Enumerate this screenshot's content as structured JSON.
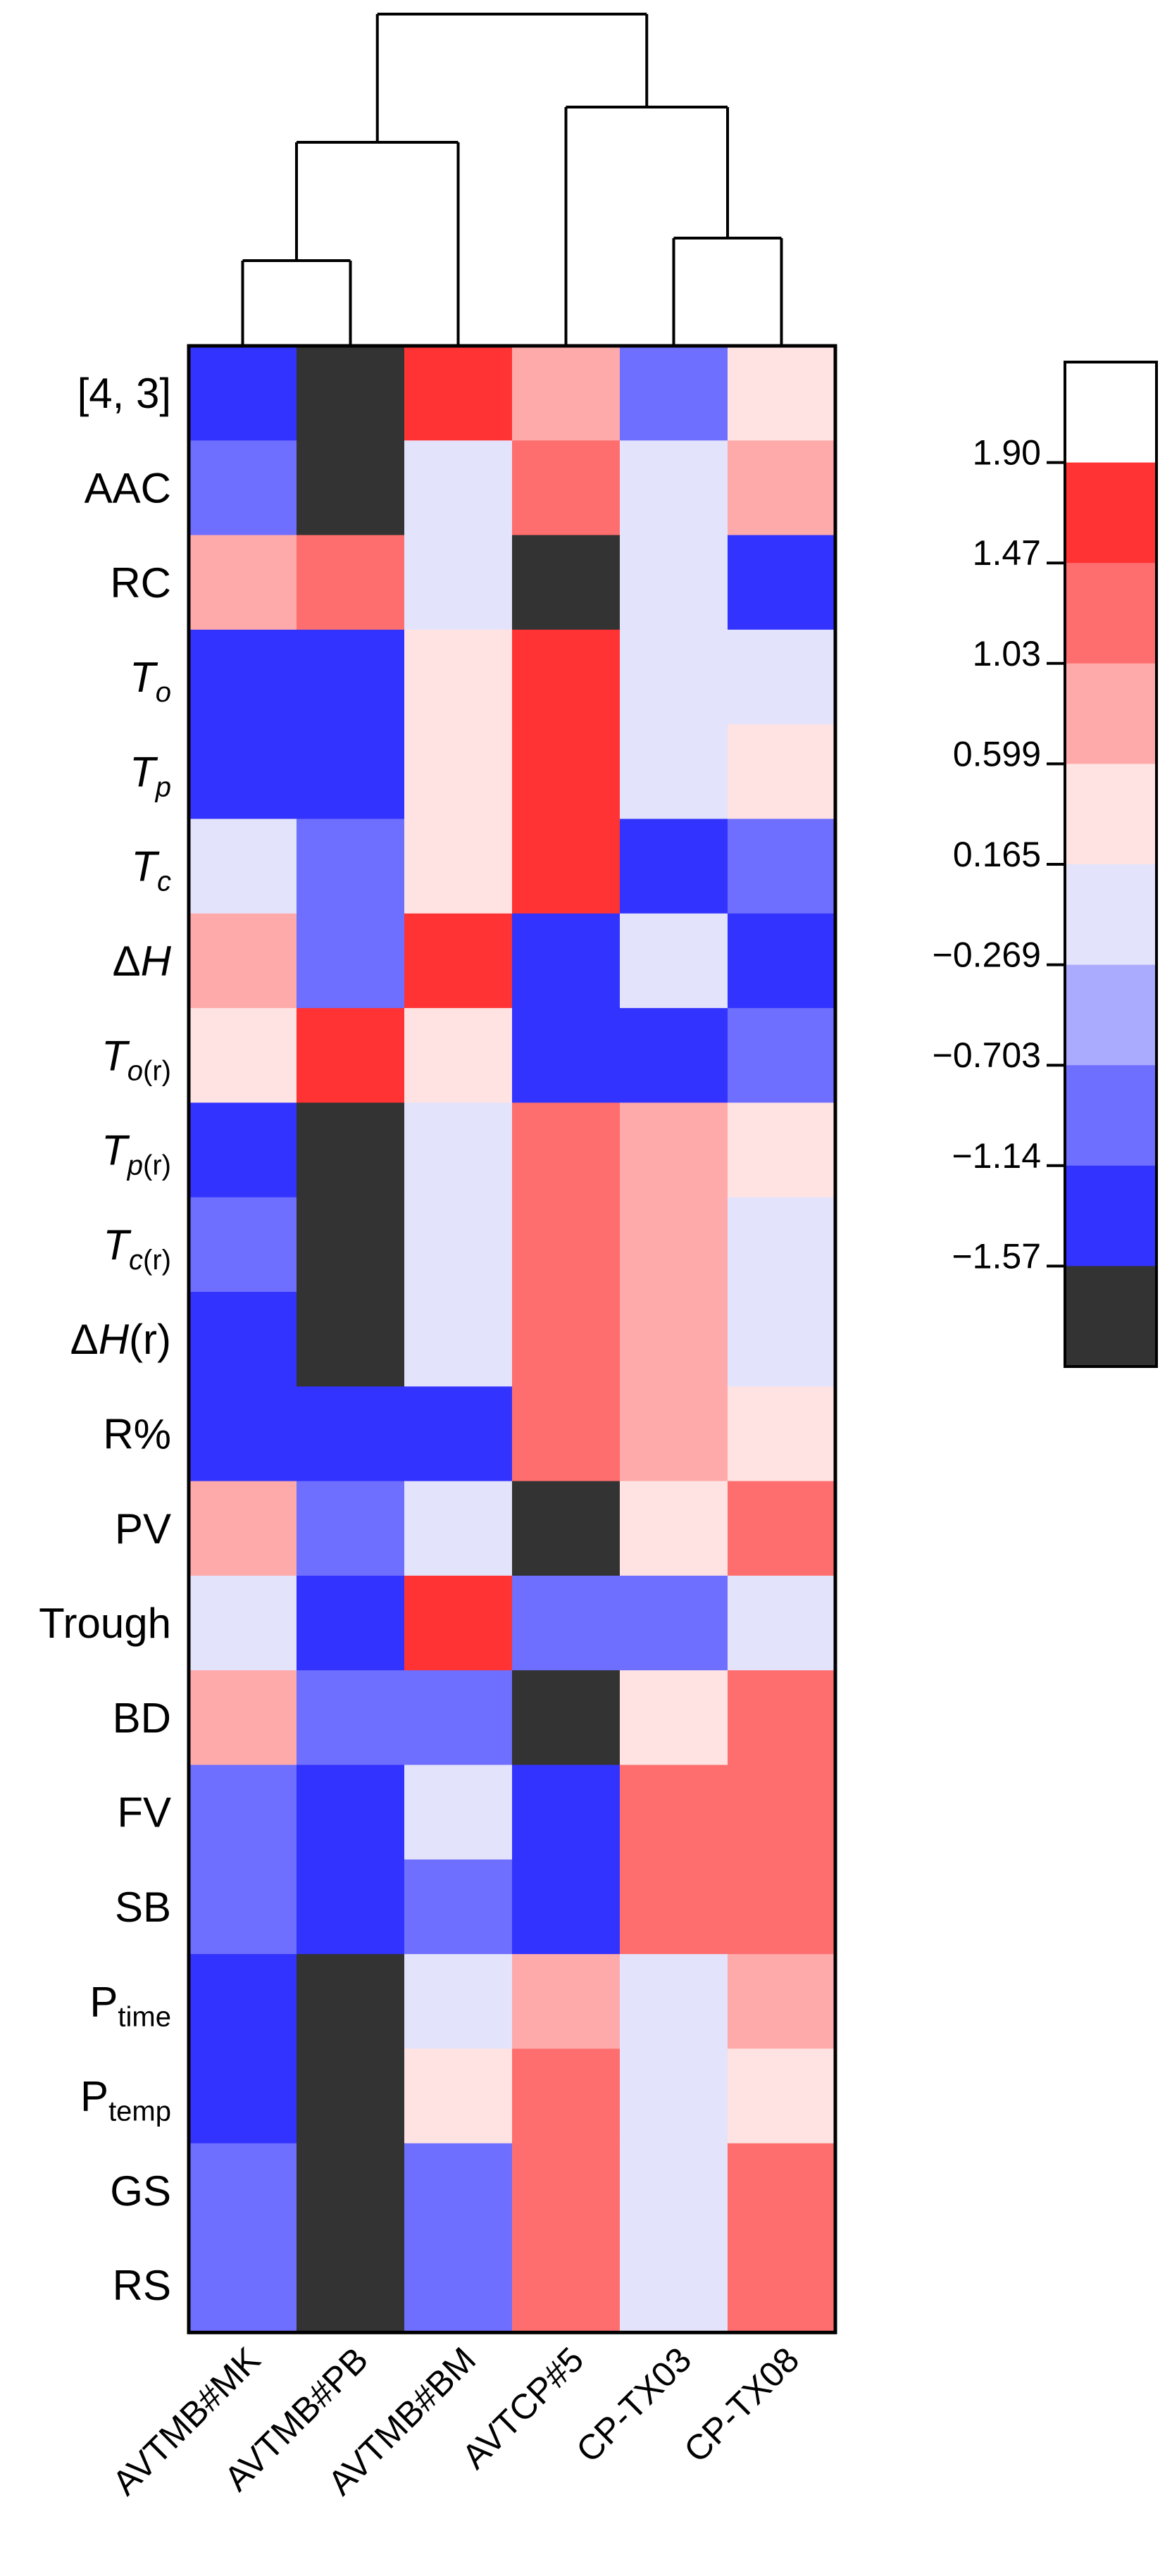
{
  "chart_data": {
    "type": "heatmap",
    "title": "",
    "xlabel": "",
    "ylabel": "",
    "columns": [
      "AVTMB#MK",
      "AVTMB#PB",
      "AVTMB#BM",
      "AVTCP#5",
      "CP-TX03",
      "CP-TX08"
    ],
    "rows": [
      {
        "label": "[4, 3]",
        "parts": [
          {
            "t": "[4, 3]"
          }
        ]
      },
      {
        "label": "AAC",
        "parts": [
          {
            "t": "AAC"
          }
        ]
      },
      {
        "label": "RC",
        "parts": [
          {
            "t": "RC"
          }
        ]
      },
      {
        "label": "To",
        "parts": [
          {
            "t": "T",
            "i": true
          },
          {
            "t": "o",
            "i": true,
            "sub": true
          }
        ]
      },
      {
        "label": "Tp",
        "parts": [
          {
            "t": "T",
            "i": true
          },
          {
            "t": "p",
            "i": true,
            "sub": true
          }
        ]
      },
      {
        "label": "Tc",
        "parts": [
          {
            "t": "T",
            "i": true
          },
          {
            "t": "c",
            "i": true,
            "sub": true
          }
        ]
      },
      {
        "label": "ΔH",
        "parts": [
          {
            "t": "Δ"
          },
          {
            "t": "H",
            "i": true
          }
        ]
      },
      {
        "label": "To(r)",
        "parts": [
          {
            "t": "T",
            "i": true
          },
          {
            "t": "o",
            "i": true,
            "sub": true
          },
          {
            "t": "(r)",
            "sub": true
          }
        ]
      },
      {
        "label": "Tp(r)",
        "parts": [
          {
            "t": "T",
            "i": true
          },
          {
            "t": "p",
            "i": true,
            "sub": true
          },
          {
            "t": "(r)",
            "sub": true
          }
        ]
      },
      {
        "label": "Tc(r)",
        "parts": [
          {
            "t": "T",
            "i": true
          },
          {
            "t": "c",
            "i": true,
            "sub": true
          },
          {
            "t": "(r)",
            "sub": true
          }
        ]
      },
      {
        "label": "ΔH(r)",
        "parts": [
          {
            "t": "Δ"
          },
          {
            "t": "H",
            "i": true
          },
          {
            "t": "(r)"
          }
        ]
      },
      {
        "label": "R%",
        "parts": [
          {
            "t": "R%"
          }
        ]
      },
      {
        "label": "PV",
        "parts": [
          {
            "t": "PV"
          }
        ]
      },
      {
        "label": "Trough",
        "parts": [
          {
            "t": "Trough"
          }
        ]
      },
      {
        "label": "BD",
        "parts": [
          {
            "t": "BD"
          }
        ]
      },
      {
        "label": "FV",
        "parts": [
          {
            "t": "FV"
          }
        ]
      },
      {
        "label": "SB",
        "parts": [
          {
            "t": "SB"
          }
        ]
      },
      {
        "label": "Ptime",
        "parts": [
          {
            "t": "P"
          },
          {
            "t": "time",
            "sub": true
          }
        ]
      },
      {
        "label": "Ptemp",
        "parts": [
          {
            "t": "P"
          },
          {
            "t": "temp",
            "sub": true
          }
        ]
      },
      {
        "label": "GS",
        "parts": [
          {
            "t": "GS"
          }
        ]
      },
      {
        "label": "RS",
        "parts": [
          {
            "t": "RS"
          }
        ]
      }
    ],
    "values": [
      [
        -1.14,
        -1.57,
        1.9,
        1.03,
        -0.703,
        0.599
      ],
      [
        -0.703,
        -1.57,
        0.165,
        1.47,
        0.165,
        1.03
      ],
      [
        1.03,
        1.47,
        0.165,
        -1.57,
        0.165,
        -1.14
      ],
      [
        -1.14,
        -1.14,
        0.599,
        1.9,
        0.165,
        0.165
      ],
      [
        -1.14,
        -1.14,
        0.599,
        1.9,
        0.165,
        0.599
      ],
      [
        0.165,
        -0.703,
        0.599,
        1.9,
        -1.14,
        -0.703
      ],
      [
        1.03,
        -0.703,
        1.9,
        -1.14,
        0.165,
        -1.14
      ],
      [
        0.599,
        1.9,
        0.599,
        -1.14,
        -1.14,
        -0.703
      ],
      [
        -1.14,
        -1.57,
        0.165,
        1.47,
        1.03,
        0.599
      ],
      [
        -0.703,
        -1.57,
        0.165,
        1.47,
        1.03,
        0.165
      ],
      [
        -1.14,
        -1.57,
        0.165,
        1.47,
        1.03,
        0.165
      ],
      [
        -1.14,
        -1.14,
        -1.14,
        1.47,
        1.03,
        0.599
      ],
      [
        1.03,
        -0.703,
        0.165,
        -1.57,
        0.599,
        1.47
      ],
      [
        0.165,
        -1.14,
        1.9,
        -0.703,
        -0.703,
        0.165
      ],
      [
        1.03,
        -0.703,
        -0.703,
        -1.57,
        0.599,
        1.47
      ],
      [
        -0.703,
        -1.14,
        0.165,
        -1.14,
        1.47,
        1.47
      ],
      [
        -0.703,
        -1.14,
        -0.703,
        -1.14,
        1.47,
        1.47
      ],
      [
        -1.14,
        -1.57,
        0.165,
        1.03,
        0.165,
        1.03
      ],
      [
        -1.14,
        -1.57,
        0.599,
        1.47,
        0.165,
        0.599
      ],
      [
        -0.703,
        -1.57,
        -0.703,
        1.47,
        0.165,
        1.47
      ],
      [
        -0.703,
        -1.57,
        -0.703,
        1.47,
        0.165,
        1.47
      ]
    ],
    "color_scale": {
      "ticks": [
        "1.90",
        "1.47",
        "1.03",
        "0.599",
        "0.165",
        "−0.269",
        "−0.703",
        "−1.14",
        "−1.57"
      ],
      "tick_values": [
        1.9,
        1.47,
        1.03,
        0.599,
        0.165,
        -0.269,
        -0.703,
        -1.14,
        -1.57
      ],
      "colors_top_to_bottom": [
        "#ffffff",
        "#ff3333",
        "#ff6e6e",
        "#ffaaaa",
        "#ffe3e3",
        "#e3e3fb",
        "#aaaaff",
        "#6e6eff",
        "#3333ff",
        "#333333"
      ]
    },
    "dendrogram": {
      "column_merges": [
        [
          "AVTMB#MK",
          "AVTMB#PB"
        ],
        [
          "AVTMB#MK+AVTMB#PB",
          "AVTMB#BM"
        ],
        [
          "CP-TX03",
          "CP-TX08"
        ],
        [
          "AVTCP#5",
          "CP-TX03+CP-TX08"
        ],
        [
          "AVTMB group",
          "AVTCP group"
        ]
      ]
    }
  }
}
